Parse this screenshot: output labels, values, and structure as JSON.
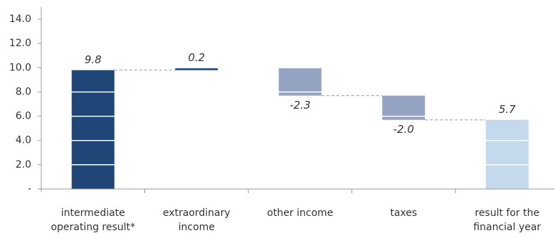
{
  "chart_data": {
    "type": "waterfall",
    "categories": [
      "intermediate\noperating result*",
      "extraordinary\nincome",
      "other income",
      "taxes",
      "result for the\nfinancial year"
    ],
    "values": [
      9.8,
      0.2,
      -2.3,
      -2.0,
      5.7
    ],
    "value_labels": [
      "9.8",
      "0.2",
      "-2.3",
      "-2.0",
      "5.7"
    ],
    "colors": [
      "#1f4677",
      "#1f4677",
      "#94a3c1",
      "#94a3c1",
      "#c5d9ec"
    ],
    "last_is_total": true,
    "ylim": [
      0,
      15
    ],
    "yticks": [
      {
        "value": 0,
        "label": "-"
      },
      {
        "value": 2,
        "label": "2.0"
      },
      {
        "value": 4,
        "label": "4.0"
      },
      {
        "value": 6,
        "label": "6.0"
      },
      {
        "value": 8,
        "label": "8.0"
      },
      {
        "value": 10,
        "label": "10.0"
      },
      {
        "value": 12,
        "label": "12.0"
      },
      {
        "value": 14,
        "label": "14.0"
      }
    ],
    "grid": true
  }
}
